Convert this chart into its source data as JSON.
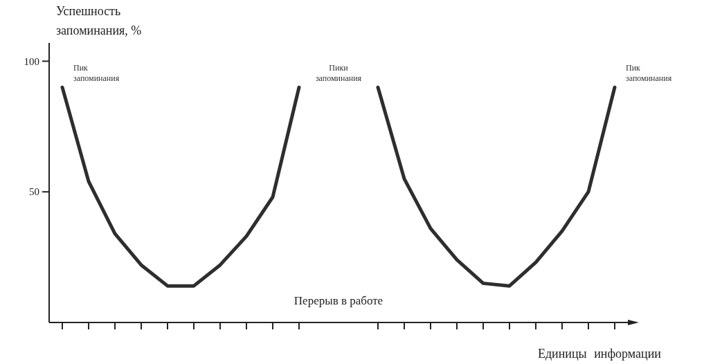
{
  "chart_data": {
    "type": "line",
    "xlabel": "Единицы информации",
    "ylabel": "Успешность запоминания, %",
    "categories": [
      null,
      null,
      null,
      null,
      null,
      null,
      null,
      null,
      null,
      null,
      null,
      null,
      null,
      null,
      null,
      null,
      null,
      null,
      null,
      null,
      null,
      null
    ],
    "ylim": [
      0,
      107
    ],
    "yticks": [
      50,
      100
    ],
    "grid": false,
    "marker": "none",
    "line_style": "solid",
    "series": [
      {
        "color": "#2e2e2e",
        "values": [
          90,
          54,
          34,
          22,
          14,
          14,
          22,
          33,
          48,
          90,
          null,
          null,
          null,
          null,
          null,
          null,
          null,
          null,
          null,
          null,
          null,
          null
        ]
      },
      {
        "color": "#2e2e2e",
        "values": [
          null,
          null,
          null,
          null,
          null,
          null,
          null,
          null,
          null,
          null,
          null,
          null,
          90,
          55,
          36,
          24,
          15,
          14,
          23,
          35,
          50,
          90
        ]
      }
    ],
    "annotations": [
      "Пик запоминания",
      "Пики запоминания",
      "Пик запоминания",
      "Перерыв в работе"
    ]
  }
}
